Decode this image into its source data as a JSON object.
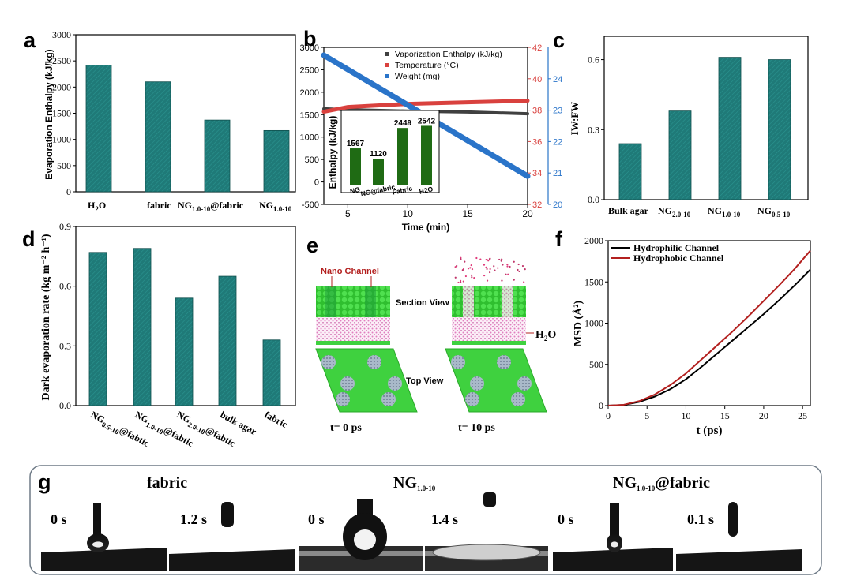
{
  "panel_labels": {
    "a": "a",
    "b": "b",
    "c": "c",
    "d": "d",
    "e": "e",
    "f": "f",
    "g": "g"
  },
  "colors": {
    "bar": "#1f7a78",
    "inset_bar": "#1f6b14",
    "enthalpy_line": "#404040",
    "temp_line": "#d9413e",
    "weight_line": "#2a74c9",
    "hydrophilic": "#000000",
    "hydrophobic": "#b3201f",
    "nano_green": "#3fd13f",
    "water_pink": "#e27fc0"
  },
  "chart_data": [
    {
      "id": "a",
      "type": "bar",
      "title": "",
      "ylabel": "Evaporation Enthalpy (kJ/kg)",
      "categories": [
        {
          "main": "H",
          "sub": "2",
          "tail": "O"
        },
        {
          "main": "fabric",
          "sub": "",
          "tail": ""
        },
        {
          "main": "NG",
          "sub": "1.0-10",
          "tail": "@fabric"
        },
        {
          "main": "NG",
          "sub": "1.0-10",
          "tail": ""
        }
      ],
      "values": [
        2420,
        2100,
        1370,
        1170
      ],
      "ylim": [
        0,
        3000
      ],
      "yticks": [
        "0",
        "500",
        "1000",
        "1500",
        "2000",
        "2500",
        "3000"
      ]
    },
    {
      "id": "b",
      "type": "line",
      "xlabel": "Time (min)",
      "xlim": [
        3,
        20
      ],
      "xticks": [
        "5",
        "10",
        "15",
        "20"
      ],
      "left_axis": {
        "lim": [
          -500,
          3000
        ],
        "ticks": [
          "-500",
          "0",
          "500",
          "1000",
          "1500",
          "2000",
          "2500",
          "3000"
        ]
      },
      "right_axis_temp": {
        "lim": [
          32,
          42
        ],
        "ticks": [
          "32",
          "34",
          "36",
          "38",
          "40",
          "42"
        ]
      },
      "right_axis_weight": {
        "lim": [
          20,
          25
        ],
        "ticks": [
          "20",
          "21",
          "22",
          "23",
          "24"
        ]
      },
      "series": [
        {
          "name": "Vaporization Enthalpy (kJ/kg)",
          "axis": "left",
          "x": [
            3,
            5,
            10,
            15,
            20
          ],
          "y": [
            1630,
            1610,
            1580,
            1560,
            1520
          ]
        },
        {
          "name": "Temperature (°C)",
          "axis": "temp",
          "x": [
            3,
            5,
            10,
            15,
            20
          ],
          "y": [
            37.9,
            38.2,
            38.4,
            38.5,
            38.6
          ]
        },
        {
          "name": "Weight (mg)",
          "axis": "weight",
          "x": [
            3,
            20
          ],
          "y": [
            24.75,
            20.9
          ]
        }
      ],
      "inset": {
        "type": "bar",
        "ylabel": "Enthalpy (kJ/kg)",
        "categories": [
          "NG",
          "NG@fabric",
          "Fabric",
          "H2O"
        ],
        "values": [
          1567,
          1120,
          2449,
          2542
        ],
        "labels": [
          "1567",
          "1120",
          "2449",
          "2542"
        ],
        "ylim": [
          0,
          3000
        ]
      }
    },
    {
      "id": "c",
      "type": "bar",
      "ylabel": "IW:FW",
      "categories": [
        {
          "main": "Bulk agar",
          "sub": ""
        },
        {
          "main": "NG",
          "sub": "2.0-10"
        },
        {
          "main": "NG",
          "sub": "1.0-10"
        },
        {
          "main": "NG",
          "sub": "0.5-10"
        }
      ],
      "values": [
        0.24,
        0.38,
        0.61,
        0.6
      ],
      "ylim": [
        0,
        0.7
      ],
      "yticks": [
        "0.0",
        "0.3",
        "0.6"
      ]
    },
    {
      "id": "d",
      "type": "bar",
      "ylabel": "Dark evaporation rate (kg m⁻² h⁻¹)",
      "categories": [
        {
          "main": "NG",
          "sub": "0.5-10",
          "tail": "@fabtic"
        },
        {
          "main": "NG",
          "sub": "1.0-10",
          "tail": "@fabtic"
        },
        {
          "main": "NG",
          "sub": "2.0-10",
          "tail": "@fabtic"
        },
        {
          "main": "bulk agar",
          "sub": "",
          "tail": ""
        },
        {
          "main": "fabric",
          "sub": "",
          "tail": ""
        }
      ],
      "values": [
        0.77,
        0.79,
        0.54,
        0.65,
        0.33
      ],
      "ylim": [
        0,
        0.9
      ],
      "yticks": [
        "0.0",
        "0.3",
        "0.6",
        "0.9"
      ]
    },
    {
      "id": "f",
      "type": "line",
      "xlabel": "t (ps)",
      "ylabel": "MSD (Å²)",
      "xlim": [
        0,
        26
      ],
      "ylim": [
        0,
        2000
      ],
      "xticks": [
        "0",
        "5",
        "10",
        "15",
        "20",
        "25"
      ],
      "yticks": [
        "0",
        "500",
        "1000",
        "1500",
        "2000"
      ],
      "series": [
        {
          "name": "Hydrophilic Channel",
          "x": [
            0,
            2,
            4,
            6,
            8,
            10,
            12,
            14,
            16,
            18,
            20,
            22,
            24,
            26
          ],
          "y": [
            0,
            8,
            45,
            110,
            200,
            320,
            470,
            630,
            790,
            950,
            1110,
            1280,
            1460,
            1650
          ]
        },
        {
          "name": "Hydrophobic Channel",
          "x": [
            0,
            2,
            4,
            6,
            8,
            10,
            12,
            14,
            16,
            18,
            20,
            22,
            24,
            26
          ],
          "y": [
            0,
            10,
            55,
            135,
            250,
            390,
            560,
            730,
            900,
            1080,
            1270,
            1460,
            1660,
            1880
          ]
        }
      ]
    }
  ],
  "panel_e": {
    "nano_channel": "Nano Channel",
    "section_view": "Section View",
    "top_view": "Top View",
    "h2o_main": "H",
    "h2o_sub": "2",
    "h2o_tail": "O",
    "t0": "t= 0 ps",
    "t10": "t= 10 ps"
  },
  "panel_g": {
    "groups": [
      {
        "title_main": "fabric",
        "title_sub": "",
        "title_tail": ""
      },
      {
        "title_main": "NG",
        "title_sub": "1.0-10",
        "title_tail": ""
      },
      {
        "title_main": "NG",
        "title_sub": "1.0-10",
        "title_tail": "@fabric"
      }
    ],
    "times": [
      "0 s",
      "1.2 s",
      "0 s",
      "1.4 s",
      "0 s",
      "0.1 s"
    ]
  }
}
